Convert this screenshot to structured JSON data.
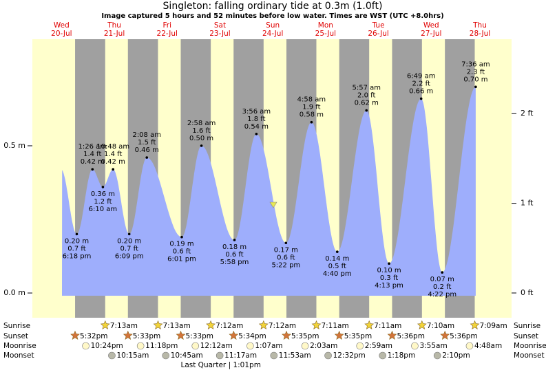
{
  "chart_data": {
    "type": "tide",
    "title": "Singleton: falling  ordinary tide at 0.3m (1.0ft)",
    "subtitle": "Image captured 5 hours and 52 minutes before low water. Times are WST (UTC +8.0hrs)",
    "ylim": [
      -0.084,
      0.862
    ],
    "yticks": [
      {
        "value": 0,
        "label": "0.0 m"
      },
      {
        "value": 0.5,
        "label": "0.5 m"
      }
    ],
    "y2lim": [
      -0.276,
      2.83
    ],
    "y2ticks": [
      {
        "value": 0,
        "label": "0 ft"
      },
      {
        "value": 1,
        "label": "1 ft"
      },
      {
        "value": 2,
        "label": "2 ft"
      }
    ],
    "colors": {
      "day": "#ffffcc",
      "night": "#a0a0a0",
      "tide": "#9eaefc",
      "sunrise": "#f2d43a",
      "sunset": "#d2743a",
      "moonrise": "#fff8c8",
      "moonset": "#b8b8a8"
    },
    "row_labels": {
      "sunrise": "Sunrise",
      "sunset": "Sunset",
      "moonrise": "Moonrise",
      "moonset": "Moonset"
    },
    "days": [
      {
        "weekday": "Wed",
        "date": "20-Jul",
        "tides": [
          {
            "time": "6:18 pm",
            "height_m": 0.2,
            "label_m": "0.20 m",
            "label_ft": "0.7 ft"
          }
        ],
        "sunrise": null,
        "sunset": "5:32pm",
        "moonrise": "10:24pm",
        "moonset": null
      },
      {
        "weekday": "Thu",
        "date": "21-Jul",
        "tides": [
          {
            "time": "1:26 am",
            "height_m": 0.42,
            "label_m": "0.42 m",
            "label_ft": "1.4 ft"
          },
          {
            "time": "6:10 am",
            "height_m": 0.36,
            "label_m": "0.36 m",
            "label_ft": "1.2 ft"
          },
          {
            "time": "10:48 am",
            "height_m": 0.42,
            "label_m": "0.42 m",
            "label_ft": "1.4 ft"
          },
          {
            "time": "6:09 pm",
            "height_m": 0.2,
            "label_m": "0.20 m",
            "label_ft": "0.7 ft"
          }
        ],
        "sunrise": "7:13am",
        "sunset": "5:33pm",
        "moonrise": "11:18pm",
        "moonset": "10:15am"
      },
      {
        "weekday": "Fri",
        "date": "22-Jul",
        "tides": [
          {
            "time": "2:08 am",
            "height_m": 0.46,
            "label_m": "0.46 m",
            "label_ft": "1.5 ft"
          },
          {
            "time": "6:01 pm",
            "height_m": 0.19,
            "label_m": "0.19 m",
            "label_ft": "0.6 ft"
          }
        ],
        "sunrise": "7:13am",
        "sunset": "5:33pm",
        "moonrise": null,
        "moonset": "10:45am"
      },
      {
        "weekday": "Sat",
        "date": "23-Jul",
        "tides": [
          {
            "time": "2:58 am",
            "height_m": 0.5,
            "label_m": "0.50 m",
            "label_ft": "1.6 ft"
          },
          {
            "time": "5:58 pm",
            "height_m": 0.18,
            "label_m": "0.18 m",
            "label_ft": "0.6 ft"
          }
        ],
        "sunrise": "7:12am",
        "sunset": "5:34pm",
        "moonrise": "12:12am",
        "moonset": "11:17am",
        "moon_phase": "Last Quarter | 1:01pm"
      },
      {
        "weekday": "Sun",
        "date": "24-Jul",
        "tides": [
          {
            "time": "3:56 am",
            "height_m": 0.54,
            "label_m": "0.54 m",
            "label_ft": "1.8 ft"
          },
          {
            "time": "5:22 pm",
            "height_m": 0.17,
            "label_m": "0.17 m",
            "label_ft": "0.6 ft"
          }
        ],
        "sunrise": "7:12am",
        "sunset": "5:35pm",
        "moonrise": "1:07am",
        "moonset": "11:53am"
      },
      {
        "weekday": "Mon",
        "date": "25-Jul",
        "tides": [
          {
            "time": "4:58 am",
            "height_m": 0.58,
            "label_m": "0.58 m",
            "label_ft": "1.9 ft"
          },
          {
            "time": "4:40 pm",
            "height_m": 0.14,
            "label_m": "0.14 m",
            "label_ft": "0.5 ft"
          }
        ],
        "sunrise": "7:11am",
        "sunset": "5:35pm",
        "moonrise": "2:03am",
        "moonset": "12:32pm"
      },
      {
        "weekday": "Tue",
        "date": "26-Jul",
        "tides": [
          {
            "time": "5:57 am",
            "height_m": 0.62,
            "label_m": "0.62 m",
            "label_ft": "2.0 ft"
          },
          {
            "time": "4:13 pm",
            "height_m": 0.1,
            "label_m": "0.10 m",
            "label_ft": "0.3 ft"
          }
        ],
        "sunrise": "7:11am",
        "sunset": "5:36pm",
        "moonrise": "2:59am",
        "moonset": "1:18pm"
      },
      {
        "weekday": "Wed",
        "date": "27-Jul",
        "tides": [
          {
            "time": "6:49 am",
            "height_m": 0.66,
            "label_m": "0.66 m",
            "label_ft": "2.2 ft"
          },
          {
            "time": "4:22 pm",
            "height_m": 0.07,
            "label_m": "0.07 m",
            "label_ft": "0.2 ft"
          }
        ],
        "sunrise": "7:10am",
        "sunset": "5:36pm",
        "moonrise": "3:55am",
        "moonset": "2:10pm"
      },
      {
        "weekday": "Thu",
        "date": "28-Jul",
        "tides": [
          {
            "time": "7:36 am",
            "height_m": 0.7,
            "label_m": "0.70 m",
            "label_ft": "2.3 ft"
          }
        ],
        "sunrise": "7:09am",
        "sunset": null,
        "moonrise": "4:48am",
        "moonset": null
      }
    ]
  }
}
